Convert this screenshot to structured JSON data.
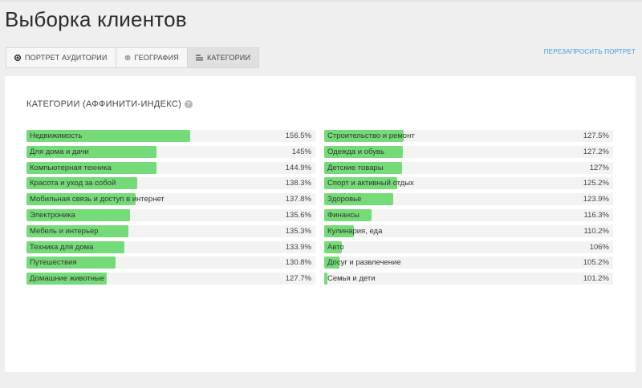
{
  "page": {
    "title": "Выборка клиентов"
  },
  "tabs": [
    {
      "label": "Портрет аудитории",
      "icon": "record-icon",
      "active": false
    },
    {
      "label": "География",
      "icon": "globe-icon",
      "active": false
    },
    {
      "label": "Категории",
      "icon": "list-icon",
      "active": true
    }
  ],
  "refresh_link": "Перезапросить портрет",
  "section": {
    "title": "Категории (аффинити-индекс)",
    "help_icon": "?"
  },
  "colors": {
    "bar": "#75db78",
    "link": "#3a9ad9"
  },
  "max_index": 156.5,
  "categories_left": [
    {
      "label": "Недвижимость",
      "value": "156.5%",
      "index": 156.5
    },
    {
      "label": "Для дома и дачи",
      "value": "145%",
      "index": 145
    },
    {
      "label": "Компьютерная техника",
      "value": "144.9%",
      "index": 144.9
    },
    {
      "label": "Красота и уход за собой",
      "value": "138.3%",
      "index": 138.3
    },
    {
      "label": "Мобильная связь и доступ в интернет",
      "value": "137.8%",
      "index": 137.8
    },
    {
      "label": "Электроника",
      "value": "135.6%",
      "index": 135.6
    },
    {
      "label": "Мебель и интерьер",
      "value": "135.3%",
      "index": 135.3
    },
    {
      "label": "Техника для дома",
      "value": "133.9%",
      "index": 133.9
    },
    {
      "label": "Путешествия",
      "value": "130.8%",
      "index": 130.8
    },
    {
      "label": "Домашние животные",
      "value": "127.7%",
      "index": 127.7
    }
  ],
  "categories_right": [
    {
      "label": "Строительство и ремонт",
      "value": "127.5%",
      "index": 127.5
    },
    {
      "label": "Одежда и обувь",
      "value": "127.2%",
      "index": 127.2
    },
    {
      "label": "Детские товары",
      "value": "127%",
      "index": 127
    },
    {
      "label": "Спорт и активный отдых",
      "value": "125.2%",
      "index": 125.2
    },
    {
      "label": "Здоровье",
      "value": "123.9%",
      "index": 123.9
    },
    {
      "label": "Финансы",
      "value": "116.3%",
      "index": 116.3
    },
    {
      "label": "Кулинария, еда",
      "value": "110.2%",
      "index": 110.2
    },
    {
      "label": "Авто",
      "value": "106%",
      "index": 106
    },
    {
      "label": "Досуг и развлечение",
      "value": "105.2%",
      "index": 105.2
    },
    {
      "label": "Семья и дети",
      "value": "101.2%",
      "index": 101.2
    }
  ]
}
